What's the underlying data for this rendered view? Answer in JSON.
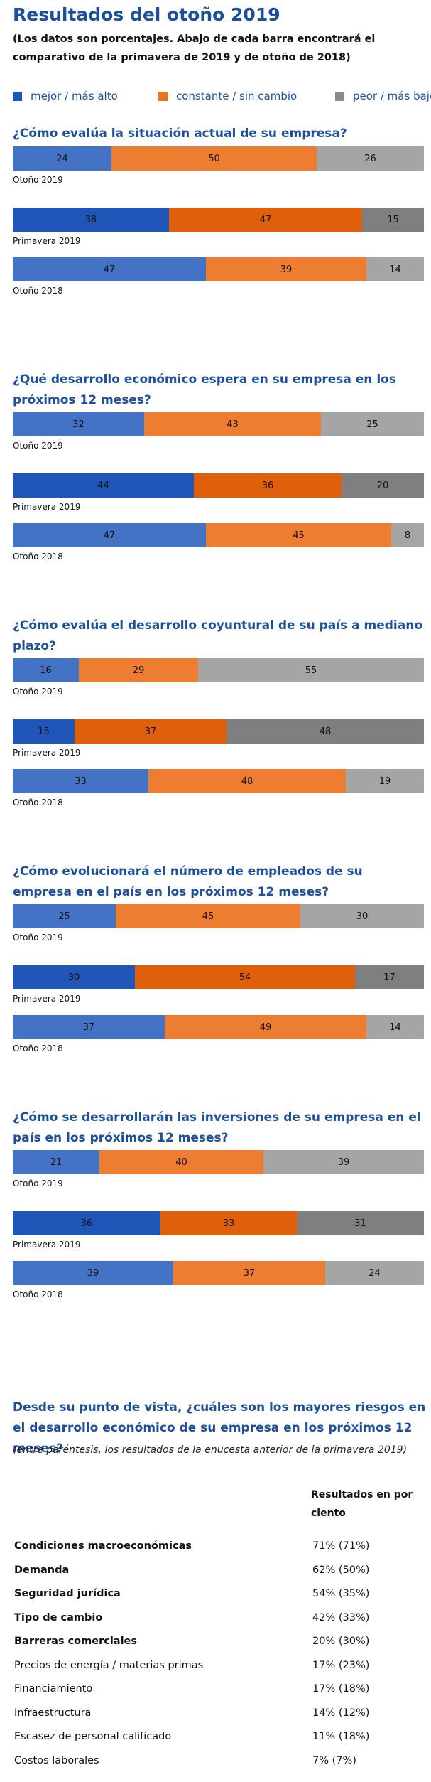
{
  "header": {
    "title": "Resultados del otoño 2019",
    "subtitle": "(Los datos son porcentajes. Abajo de cada barra encontrará el comparativo de la primavera de 2019 y de otoño de 2018)"
  },
  "legend": [
    {
      "label": "mejor / más alto",
      "color": "#1f56b8"
    },
    {
      "label": "constante / sin cambio",
      "color": "#e8751f"
    },
    {
      "label": "peor / más bajo",
      "color": "#8c8c8c"
    }
  ],
  "colors": {
    "fall2019": [
      "#4472c4",
      "#ed7d31",
      "#a5a5a5"
    ],
    "spring2019": [
      "#1f56b8",
      "#e05f0a",
      "#7f7f7f"
    ],
    "fall2018": [
      "#4472c4",
      "#ed7d31",
      "#a5a5a5"
    ]
  },
  "chart_data": [
    {
      "type": "bar",
      "orientation": "horizontal-stacked",
      "title": "¿Cómo evalúa la situación actual de su empresa?",
      "categories": [
        "Otoño 2019",
        "Primavera 2019",
        "Otoño 2018"
      ],
      "series": [
        {
          "name": "mejor / más alto",
          "values": [
            24,
            38,
            47
          ]
        },
        {
          "name": "constante / sin cambio",
          "values": [
            50,
            47,
            39
          ]
        },
        {
          "name": "peor / más bajo",
          "values": [
            26,
            15,
            14
          ]
        }
      ],
      "xlim": [
        0,
        100
      ]
    },
    {
      "type": "bar",
      "orientation": "horizontal-stacked",
      "title": "¿Qué desarrollo económico espera en su empresa en los próximos 12 meses?",
      "categories": [
        "Otoño 2019",
        "Primavera 2019",
        "Otoño 2018"
      ],
      "series": [
        {
          "name": "mejor / más alto",
          "values": [
            32,
            44,
            47
          ]
        },
        {
          "name": "constante / sin cambio",
          "values": [
            43,
            36,
            45
          ]
        },
        {
          "name": "peor / más bajo",
          "values": [
            25,
            20,
            8
          ]
        }
      ],
      "xlim": [
        0,
        100
      ]
    },
    {
      "type": "bar",
      "orientation": "horizontal-stacked",
      "title": "¿Cómo evalúa el desarrollo coyuntural de su país a mediano plazo?",
      "categories": [
        "Otoño 2019",
        "Primavera 2019",
        "Otoño 2018"
      ],
      "series": [
        {
          "name": "mejor / más alto",
          "values": [
            16,
            15,
            33
          ]
        },
        {
          "name": "constante / sin cambio",
          "values": [
            29,
            37,
            48
          ]
        },
        {
          "name": "peor / más bajo",
          "values": [
            55,
            48,
            19
          ]
        }
      ],
      "xlim": [
        0,
        100
      ]
    },
    {
      "type": "bar",
      "orientation": "horizontal-stacked",
      "title": "¿Cómo evolucionará el número de empleados de su empresa en el país en los próximos 12 meses?",
      "categories": [
        "Otoño 2019",
        "Primavera 2019",
        "Otoño 2018"
      ],
      "series": [
        {
          "name": "mejor / más alto",
          "values": [
            25,
            30,
            37
          ]
        },
        {
          "name": "constante / sin cambio",
          "values": [
            45,
            54,
            49
          ]
        },
        {
          "name": "peor / más bajo",
          "values": [
            30,
            17,
            14
          ]
        }
      ],
      "xlim": [
        0,
        100
      ]
    },
    {
      "type": "bar",
      "orientation": "horizontal-stacked",
      "title": "¿Cómo se desarrollarán las inversiones de su empresa en el país en los próximos 12 meses?",
      "categories": [
        "Otoño 2019",
        "Primavera 2019",
        "Otoño 2018"
      ],
      "series": [
        {
          "name": "mejor / más alto",
          "values": [
            21,
            36,
            39
          ]
        },
        {
          "name": "constante / sin cambio",
          "values": [
            40,
            33,
            37
          ]
        },
        {
          "name": "peor / más bajo",
          "values": [
            39,
            31,
            24
          ]
        }
      ],
      "xlim": [
        0,
        100
      ]
    },
    {
      "type": "table",
      "title": "Desde su punto de vista, ¿cuáles son los mayores riesgos en el desarrollo económico de su empresa en los próximos 12 meses?",
      "note": "(entre paréntesis, los resultados de la enucesta anterior de la primavera 2019)",
      "column_header": "Resultados en por ciento",
      "rows": [
        {
          "label": "Condiciones macroeconómicas",
          "current": "71%",
          "previous": "(71%)",
          "bold": true
        },
        {
          "label": "Demanda",
          "current": "62%",
          "previous": "(50%)",
          "bold": true
        },
        {
          "label": "Seguridad jurídica",
          "current": "54%",
          "previous": "(35%)",
          "bold": true
        },
        {
          "label": "Tipo de cambio",
          "current": "42%",
          "previous": "(33%)",
          "bold": true
        },
        {
          "label": "Barreras comerciales",
          "current": "20%",
          "previous": "(30%)",
          "bold": true
        },
        {
          "label": "Precios de energía / materias primas",
          "current": "17%",
          "previous": "(23%)",
          "bold": false
        },
        {
          "label": "Financiamiento",
          "current": "17%",
          "previous": "(18%)",
          "bold": false
        },
        {
          "label": "Infraestructura",
          "current": "14%",
          "previous": "(12%)",
          "bold": false
        },
        {
          "label": "Escasez de personal calificado",
          "current": "11%",
          "previous": "(18%)",
          "bold": false
        },
        {
          "label": "Costos laborales",
          "current": "7%",
          "previous": "(7%)",
          "bold": false
        }
      ]
    }
  ]
}
